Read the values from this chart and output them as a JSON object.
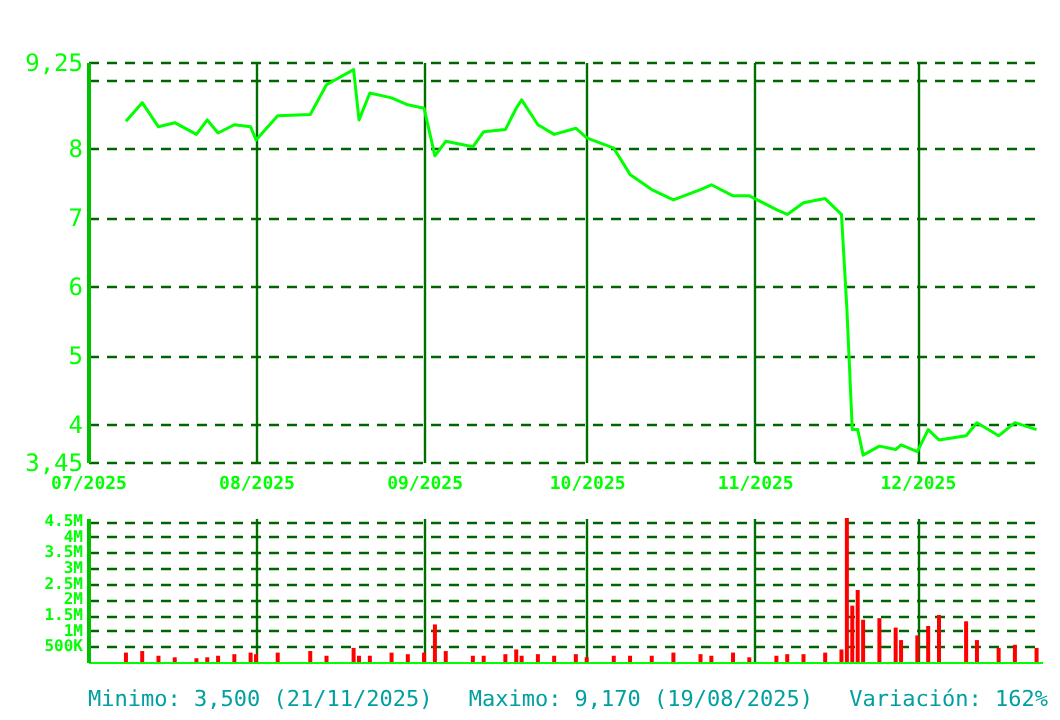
{
  "chart_data": [
    {
      "type": "line",
      "x": [
        "2025-07-08",
        "2025-07-11",
        "2025-07-14",
        "2025-07-17",
        "2025-07-21",
        "2025-07-23",
        "2025-07-25",
        "2025-07-28",
        "2025-07-31",
        "2025-08-01",
        "2025-08-05",
        "2025-08-11",
        "2025-08-14",
        "2025-08-19",
        "2025-08-20",
        "2025-08-22",
        "2025-08-26",
        "2025-08-29",
        "2025-09-01",
        "2025-09-03",
        "2025-09-05",
        "2025-09-10",
        "2025-09-12",
        "2025-09-16",
        "2025-09-18",
        "2025-09-19",
        "2025-09-22",
        "2025-09-25",
        "2025-09-29",
        "2025-10-01",
        "2025-10-06",
        "2025-10-09",
        "2025-10-13",
        "2025-10-17",
        "2025-10-22",
        "2025-10-24",
        "2025-10-28",
        "2025-10-31",
        "2025-11-05",
        "2025-11-07",
        "2025-11-10",
        "2025-11-14",
        "2025-11-17",
        "2025-11-18",
        "2025-11-19",
        "2025-11-20",
        "2025-11-21",
        "2025-11-24",
        "2025-11-27",
        "2025-11-28",
        "2025-12-01",
        "2025-12-03",
        "2025-12-05",
        "2025-12-10",
        "2025-12-12",
        "2025-12-16",
        "2025-12-19",
        "2025-12-23"
      ],
      "series": [
        {
          "color": "#00ff00",
          "values": [
            8.39,
            8.66,
            8.31,
            8.37,
            8.2,
            8.41,
            8.22,
            8.34,
            8.31,
            8.12,
            8.47,
            8.49,
            8.92,
            9.14,
            8.41,
            8.8,
            8.73,
            8.63,
            8.58,
            7.89,
            8.1,
            8.02,
            8.24,
            8.27,
            8.58,
            8.7,
            8.34,
            8.2,
            8.29,
            8.15,
            8.0,
            7.62,
            7.4,
            7.25,
            7.4,
            7.47,
            7.31,
            7.31,
            7.11,
            7.04,
            7.21,
            7.27,
            7.04,
            5.68,
            3.92,
            3.92,
            3.55,
            3.68,
            3.63,
            3.7,
            3.6,
            3.92,
            3.77,
            3.83,
            4.02,
            3.83,
            4.02,
            3.92
          ]
        }
      ],
      "xlim": [
        "2025-07-01",
        "2025-12-24"
      ],
      "xticks": [
        {
          "value": "2025-07-01",
          "label": "07/2025"
        },
        {
          "value": "2025-08-01",
          "label": "08/2025"
        },
        {
          "value": "2025-09-01",
          "label": "09/2025"
        },
        {
          "value": "2025-10-01",
          "label": "10/2025"
        },
        {
          "value": "2025-11-01",
          "label": "11/2025"
        },
        {
          "value": "2025-12-01",
          "label": "12/2025"
        }
      ],
      "ylim": [
        3.45,
        9.25
      ],
      "yticks": [
        {
          "value": 3.45,
          "label": "3,45"
        },
        4,
        5,
        6,
        7,
        8,
        {
          "value": 9,
          "label": null
        },
        {
          "value": 9.25,
          "label": "9,25"
        }
      ],
      "grid": true,
      "line_style": "solid"
    },
    {
      "type": "bar",
      "x": [
        "2025-07-08",
        "2025-07-11",
        "2025-07-14",
        "2025-07-17",
        "2025-07-21",
        "2025-07-23",
        "2025-07-25",
        "2025-07-28",
        "2025-07-31",
        "2025-08-01",
        "2025-08-05",
        "2025-08-11",
        "2025-08-14",
        "2025-08-19",
        "2025-08-20",
        "2025-08-22",
        "2025-08-26",
        "2025-08-29",
        "2025-09-01",
        "2025-09-03",
        "2025-09-05",
        "2025-09-10",
        "2025-09-12",
        "2025-09-16",
        "2025-09-18",
        "2025-09-19",
        "2025-09-22",
        "2025-09-25",
        "2025-09-29",
        "2025-10-01",
        "2025-10-06",
        "2025-10-09",
        "2025-10-13",
        "2025-10-17",
        "2025-10-22",
        "2025-10-24",
        "2025-10-28",
        "2025-10-31",
        "2025-11-05",
        "2025-11-07",
        "2025-11-10",
        "2025-11-14",
        "2025-11-17",
        "2025-11-18",
        "2025-11-19",
        "2025-11-20",
        "2025-11-21",
        "2025-11-24",
        "2025-11-27",
        "2025-11-28",
        "2025-12-01",
        "2025-12-03",
        "2025-12-05",
        "2025-12-10",
        "2025-12-12",
        "2025-12-16",
        "2025-12-19",
        "2025-12-23"
      ],
      "series": [
        {
          "color": "#ff0000",
          "values": [
            300000,
            350000,
            200000,
            150000,
            120000,
            150000,
            200000,
            250000,
            300000,
            250000,
            300000,
            350000,
            200000,
            450000,
            200000,
            200000,
            300000,
            250000,
            300000,
            1200000,
            350000,
            200000,
            200000,
            250000,
            400000,
            200000,
            250000,
            200000,
            250000,
            150000,
            200000,
            200000,
            200000,
            300000,
            250000,
            200000,
            300000,
            150000,
            200000,
            250000,
            250000,
            300000,
            400000,
            4600000,
            1800000,
            2300000,
            1350000,
            1400000,
            1100000,
            700000,
            850000,
            1150000,
            1500000,
            1300000,
            700000,
            450000,
            550000,
            450000
          ]
        }
      ],
      "xlim": [
        "2025-07-01",
        "2025-12-24"
      ],
      "xticks": [
        {
          "value": "2025-07-01",
          "label": null
        },
        {
          "value": "2025-08-01",
          "label": null
        },
        {
          "value": "2025-09-01",
          "label": null
        },
        {
          "value": "2025-10-01",
          "label": null
        },
        {
          "value": "2025-11-01",
          "label": null
        },
        {
          "value": "2025-12-01",
          "label": null
        }
      ],
      "ylim": [
        0,
        4600000
      ],
      "yticks": [
        {
          "value": 500000,
          "label": "500K"
        },
        {
          "value": 1000000,
          "label": "1M"
        },
        {
          "value": 1500000,
          "label": "1.5M"
        },
        {
          "value": 2000000,
          "label": "2M"
        },
        {
          "value": 2500000,
          "label": "2.5M"
        },
        {
          "value": 3000000,
          "label": "3M"
        },
        {
          "value": 3500000,
          "label": "3.5M"
        },
        {
          "value": 4000000,
          "label": "4M"
        },
        {
          "value": 4500000,
          "label": "4.5M"
        }
      ],
      "grid": true,
      "tick_labels": "y",
      "annotations": [
        "Minimo: 3,500 (21/11/2025)",
        "Maximo: 9,170 (19/08/2025)",
        "Variación: 162%"
      ]
    }
  ]
}
